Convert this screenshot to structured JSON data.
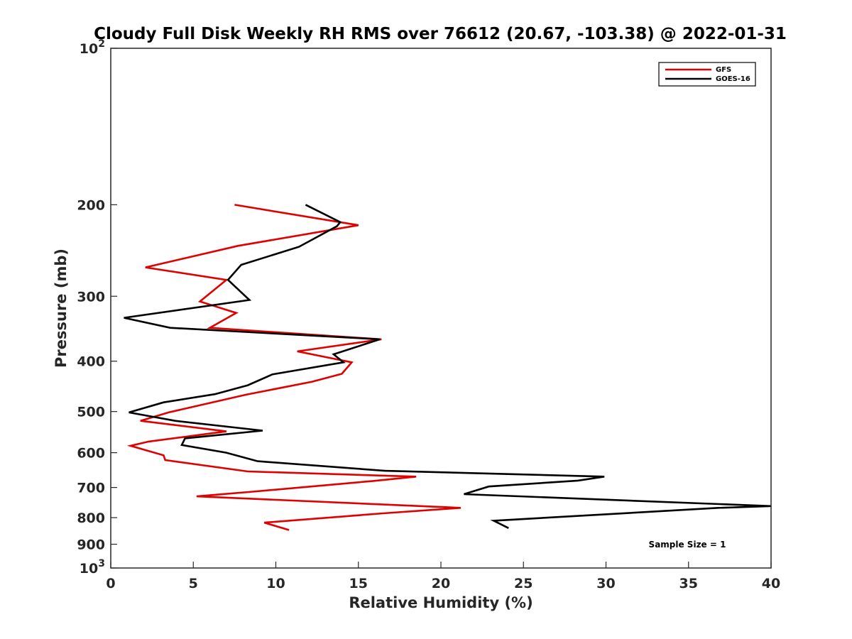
{
  "chart_data": {
    "type": "line",
    "title": "Cloudy Full Disk Weekly RH RMS over 76612 (20.67, -103.38) @ 2022-01-31",
    "xlabel": "Relative Humidity (%)",
    "ylabel": "Pressure (mb)",
    "xlim": [
      0,
      40
    ],
    "ylim": [
      100,
      1000
    ],
    "yscale": "log",
    "y_reversed": true,
    "x_ticks": [
      0,
      5,
      10,
      15,
      20,
      25,
      30,
      35,
      40
    ],
    "x_tick_labels": [
      "0",
      "5",
      "10",
      "15",
      "20",
      "25",
      "30",
      "35",
      "40"
    ],
    "y_ticks": [
      100,
      200,
      300,
      400,
      500,
      600,
      700,
      800,
      900,
      1000
    ],
    "y_tick_labels": [
      {
        "base": "10",
        "exp": "2"
      },
      {
        "base": "200",
        "exp": ""
      },
      {
        "base": "300",
        "exp": ""
      },
      {
        "base": "400",
        "exp": ""
      },
      {
        "base": "500",
        "exp": ""
      },
      {
        "base": "600",
        "exp": ""
      },
      {
        "base": "700",
        "exp": ""
      },
      {
        "base": "800",
        "exp": ""
      },
      {
        "base": "900",
        "exp": ""
      },
      {
        "base": "10",
        "exp": "3"
      }
    ],
    "legend_position": "top-right",
    "annotation": "Sample Size = 1",
    "series": [
      {
        "name": "GFS",
        "color": "#e00000",
        "points": [
          [
            7.5,
            200
          ],
          [
            15.0,
            219
          ],
          [
            7.7,
            240
          ],
          [
            2.1,
            264
          ],
          [
            7.0,
            279
          ],
          [
            5.4,
            307
          ],
          [
            7.6,
            323
          ],
          [
            6.0,
            345
          ],
          [
            16.4,
            363
          ],
          [
            11.3,
            383
          ],
          [
            14.6,
            402
          ],
          [
            14.0,
            423
          ],
          [
            12.2,
            438
          ],
          [
            8.2,
            464
          ],
          [
            3.5,
            502
          ],
          [
            1.8,
            521
          ],
          [
            7.0,
            546
          ],
          [
            2.3,
            571
          ],
          [
            1.2,
            582
          ],
          [
            3.2,
            607
          ],
          [
            3.3,
            620
          ],
          [
            8.3,
            652
          ],
          [
            18.5,
            667
          ],
          [
            15.9,
            680
          ],
          [
            8.6,
            713
          ],
          [
            5.2,
            728
          ],
          [
            21.2,
            766
          ],
          [
            16.5,
            785
          ],
          [
            9.3,
            818
          ],
          [
            10.8,
            845
          ]
        ]
      },
      {
        "name": "GOES-16",
        "color": "#000000",
        "points": [
          [
            11.8,
            200
          ],
          [
            13.9,
            216
          ],
          [
            13.7,
            220
          ],
          [
            11.4,
            241
          ],
          [
            7.9,
            261
          ],
          [
            7.1,
            279
          ],
          [
            8.4,
            305
          ],
          [
            0.8,
            330
          ],
          [
            3.6,
            345
          ],
          [
            16.3,
            363
          ],
          [
            13.5,
            388
          ],
          [
            14.1,
            402
          ],
          [
            9.8,
            424
          ],
          [
            8.3,
            445
          ],
          [
            6.3,
            463
          ],
          [
            3.2,
            480
          ],
          [
            1.1,
            502
          ],
          [
            3.9,
            521
          ],
          [
            9.2,
            544
          ],
          [
            4.5,
            563
          ],
          [
            4.3,
            580
          ],
          [
            7.0,
            600
          ],
          [
            8.9,
            623
          ],
          [
            16.6,
            650
          ],
          [
            29.9,
            667
          ],
          [
            28.3,
            679
          ],
          [
            22.9,
            697
          ],
          [
            21.4,
            721
          ],
          [
            40.0,
            760
          ],
          [
            36.8,
            766
          ],
          [
            23.2,
            811
          ],
          [
            24.1,
            838
          ]
        ]
      }
    ]
  }
}
